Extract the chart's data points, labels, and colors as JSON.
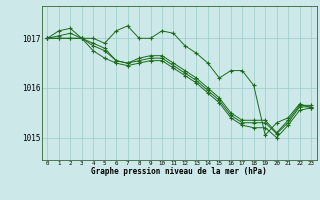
{
  "title": "Graphe pression niveau de la mer (hPa)",
  "bg_color": "#cce8e8",
  "grid_color": "#99cccc",
  "line_color": "#1a6b1a",
  "marker": "+",
  "x_ticks": [
    0,
    1,
    2,
    3,
    4,
    5,
    6,
    7,
    8,
    9,
    10,
    11,
    12,
    13,
    14,
    15,
    16,
    17,
    18,
    19,
    20,
    21,
    22,
    23
  ],
  "y_ticks": [
    1015,
    1016,
    1017
  ],
  "ylim": [
    1014.55,
    1017.65
  ],
  "xlim": [
    -0.5,
    23.5
  ],
  "lines": [
    [
      1017.0,
      1017.15,
      1017.2,
      1017.0,
      1017.0,
      1016.9,
      1017.15,
      1017.25,
      1017.0,
      1017.0,
      1017.15,
      1017.1,
      1016.85,
      1016.7,
      1016.5,
      1016.2,
      1016.35,
      1016.35,
      1016.05,
      1015.05,
      1015.3,
      1015.4,
      1015.68,
      1015.6
    ],
    [
      1017.0,
      1017.05,
      1017.1,
      1017.0,
      1016.75,
      1016.6,
      1016.5,
      1016.45,
      1016.5,
      1016.55,
      1016.55,
      1016.4,
      1016.25,
      1016.1,
      1015.9,
      1015.7,
      1015.4,
      1015.25,
      1015.2,
      1015.2,
      1015.0,
      1015.25,
      1015.55,
      1015.6
    ],
    [
      1017.0,
      1017.0,
      1017.0,
      1017.0,
      1016.85,
      1016.75,
      1016.55,
      1016.5,
      1016.55,
      1016.6,
      1016.6,
      1016.45,
      1016.3,
      1016.15,
      1015.95,
      1015.75,
      1015.45,
      1015.3,
      1015.3,
      1015.3,
      1015.08,
      1015.3,
      1015.62,
      1015.62
    ],
    [
      1017.0,
      1017.0,
      1017.0,
      1017.0,
      1016.9,
      1016.8,
      1016.55,
      1016.5,
      1016.6,
      1016.65,
      1016.65,
      1016.5,
      1016.35,
      1016.2,
      1016.0,
      1015.8,
      1015.5,
      1015.35,
      1015.35,
      1015.35,
      1015.1,
      1015.35,
      1015.65,
      1015.65
    ]
  ]
}
